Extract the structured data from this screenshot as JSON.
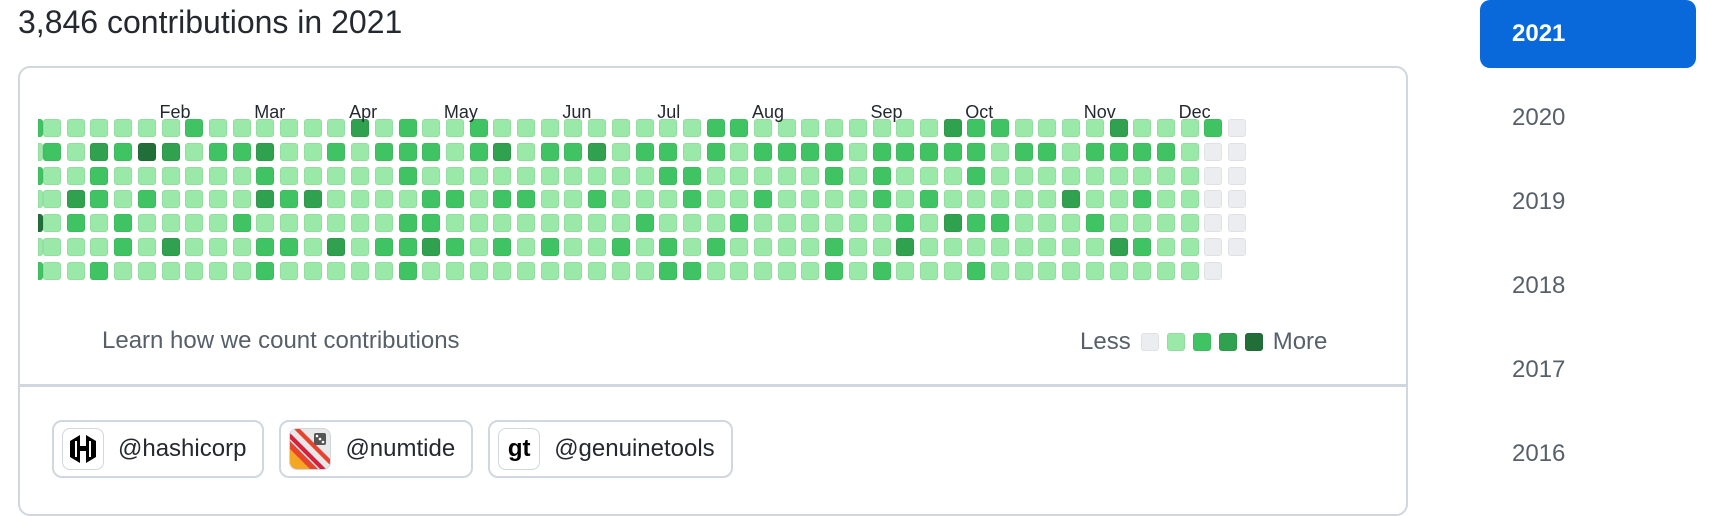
{
  "heading": "3,846 contributions in 2021",
  "months": [
    {
      "label": "Feb",
      "week": 5
    },
    {
      "label": "Mar",
      "week": 9
    },
    {
      "label": "Apr",
      "week": 13
    },
    {
      "label": "May",
      "week": 17
    },
    {
      "label": "Jun",
      "week": 22
    },
    {
      "label": "Jul",
      "week": 26
    },
    {
      "label": "Aug",
      "week": 30
    },
    {
      "label": "Sep",
      "week": 35
    },
    {
      "label": "Oct",
      "week": 39
    },
    {
      "label": "Nov",
      "week": 44
    },
    {
      "label": "Dec",
      "week": 48
    }
  ],
  "levels": [
    "1111112.111111312.1121111.1111122.1111111.1322111.131112.",
    "2132431.2231121.2221231.2231221.2122221.2222212.2122221.",
    "1121111.1121111.1211111.1111122.1111121.2111211.1111111.",
    "1321211.1132311.1122122.1121112.1121111.2121111.1311211.",
    "1212111.1211111.1221111.1111211.1211111.1213221.1121111.",
    "1112131.1122131.2232121.2112121.2111121.1311111.1113211.",
    "1121111.1121111.1211111.1111122.1111121.2111211.1111111."
  ],
  "colors": {
    "level0": "#ebedf0",
    "level1": "#9be9a8",
    "level2": "#40c463",
    "level3": "#30a14e",
    "level4": "#216e39"
  },
  "footer": {
    "learn_link": "Learn how we count contributions",
    "legend_less": "Less",
    "legend_more": "More"
  },
  "orgs": [
    {
      "label": "@hashicorp",
      "icon": "hashicorp-logo-icon"
    },
    {
      "label": "@numtide",
      "icon": "numtide-logo-icon"
    },
    {
      "label": "@genuinetools",
      "icon": "genuinetools-logo-icon",
      "avatar_text": "gt"
    }
  ],
  "years": [
    "2021",
    "2020",
    "2019",
    "2018",
    "2017",
    "2016"
  ],
  "selected_year": "2021"
}
